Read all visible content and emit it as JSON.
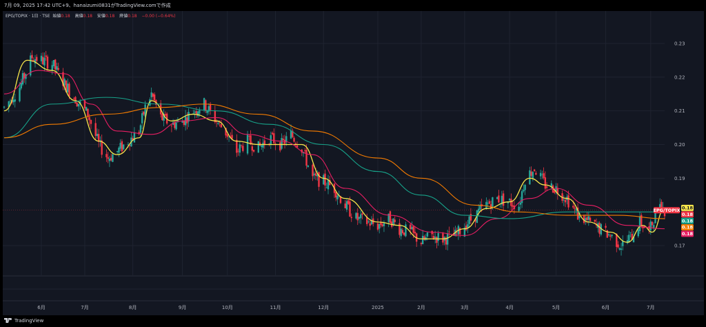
{
  "header": {
    "text": "7月 09, 2025 17:42 UTC+9、hanaizumi0831がTradingView.comで作成"
  },
  "legend": {
    "symbol": "EPG/TOPIX · 1日 · TSE",
    "open_label": "始値",
    "open_value": "0.18",
    "high_label": "高値",
    "high_value": "0.18",
    "low_label": "安値",
    "low_value": "0.18",
    "close_label": "終値",
    "close_value": "0.18",
    "change": "−0.00 (−0.64%)"
  },
  "footer": {
    "brand": "TradingView"
  },
  "colors": {
    "background": "#131722",
    "grid": "#1f2330",
    "up": "#26a69a",
    "down": "#f23645",
    "text": "#b2b5be",
    "ma_yellow": "#f7e64b",
    "ma_pink": "#e91e63",
    "ma_teal": "#17a38a",
    "ma_orange": "#f57c00"
  },
  "chart_data": {
    "type": "candlestick",
    "title": "EPG/TOPIX · 1日 · TSE",
    "xlabel": "",
    "ylabel": "",
    "ylim": [
      0.161,
      0.239
    ],
    "y_scale": "linear",
    "yticks": [
      "0.23",
      "0.22",
      "0.21",
      "0.20",
      "0.19",
      "0.17"
    ],
    "ytick_values": [
      0.23,
      0.22,
      0.21,
      0.2,
      0.19,
      0.17
    ],
    "x_range": [
      "2024-05-10",
      "2025-07-10"
    ],
    "xticks": [
      {
        "label": "6月",
        "date": "2024-06-03"
      },
      {
        "label": "7月",
        "date": "2024-07-01"
      },
      {
        "label": "8月",
        "date": "2024-08-01"
      },
      {
        "label": "9月",
        "date": "2024-09-02"
      },
      {
        "label": "10月",
        "date": "2024-10-01"
      },
      {
        "label": "11月",
        "date": "2024-11-01"
      },
      {
        "label": "12月",
        "date": "2024-12-02"
      },
      {
        "label": "2025",
        "date": "2025-01-06"
      },
      {
        "label": "2月",
        "date": "2025-02-03"
      },
      {
        "label": "3月",
        "date": "2025-03-03"
      },
      {
        "label": "4月",
        "date": "2025-04-01"
      },
      {
        "label": "5月",
        "date": "2025-05-01"
      },
      {
        "label": "6月",
        "date": "2025-06-02"
      },
      {
        "label": "7月",
        "date": "2025-07-01"
      }
    ],
    "grid": true,
    "last_price": 0.1805,
    "price_path": [
      [
        "2024-05-10",
        0.211
      ],
      [
        "2024-05-20",
        0.217
      ],
      [
        "2024-05-28",
        0.226
      ],
      [
        "2024-06-03",
        0.225
      ],
      [
        "2024-06-10",
        0.224
      ],
      [
        "2024-06-18",
        0.218
      ],
      [
        "2024-06-26",
        0.213
      ],
      [
        "2024-07-03",
        0.209
      ],
      [
        "2024-07-10",
        0.2
      ],
      [
        "2024-07-16",
        0.196
      ],
      [
        "2024-07-22",
        0.198
      ],
      [
        "2024-07-29",
        0.201
      ],
      [
        "2024-08-05",
        0.204
      ],
      [
        "2024-08-09",
        0.211
      ],
      [
        "2024-08-13",
        0.215
      ],
      [
        "2024-08-19",
        0.208
      ],
      [
        "2024-08-26",
        0.206
      ],
      [
        "2024-09-02",
        0.207
      ],
      [
        "2024-09-09",
        0.21
      ],
      [
        "2024-09-16",
        0.212
      ],
      [
        "2024-09-24",
        0.207
      ],
      [
        "2024-10-01",
        0.203
      ],
      [
        "2024-10-07",
        0.198
      ],
      [
        "2024-10-14",
        0.201
      ],
      [
        "2024-10-21",
        0.199
      ],
      [
        "2024-10-28",
        0.202
      ],
      [
        "2024-11-05",
        0.2
      ],
      [
        "2024-11-11",
        0.203
      ],
      [
        "2024-11-18",
        0.199
      ],
      [
        "2024-11-25",
        0.19
      ],
      [
        "2024-12-02",
        0.189
      ],
      [
        "2024-12-09",
        0.187
      ],
      [
        "2024-12-16",
        0.182
      ],
      [
        "2024-12-23",
        0.178
      ],
      [
        "2025-01-06",
        0.176
      ],
      [
        "2025-01-14",
        0.178
      ],
      [
        "2025-01-20",
        0.175
      ],
      [
        "2025-01-27",
        0.174
      ],
      [
        "2025-02-03",
        0.171
      ],
      [
        "2025-02-10",
        0.173
      ],
      [
        "2025-02-17",
        0.172
      ],
      [
        "2025-02-25",
        0.173
      ],
      [
        "2025-03-03",
        0.176
      ],
      [
        "2025-03-10",
        0.179
      ],
      [
        "2025-03-17",
        0.182
      ],
      [
        "2025-03-24",
        0.184
      ],
      [
        "2025-03-31",
        0.183
      ],
      [
        "2025-04-07",
        0.182
      ],
      [
        "2025-04-11",
        0.19
      ],
      [
        "2025-04-17",
        0.193
      ],
      [
        "2025-04-24",
        0.188
      ],
      [
        "2025-05-01",
        0.187
      ],
      [
        "2025-05-08",
        0.184
      ],
      [
        "2025-05-15",
        0.179
      ],
      [
        "2025-05-22",
        0.177
      ],
      [
        "2025-05-29",
        0.175
      ],
      [
        "2025-06-05",
        0.173
      ],
      [
        "2025-06-12",
        0.17
      ],
      [
        "2025-06-19",
        0.173
      ],
      [
        "2025-06-24",
        0.177
      ],
      [
        "2025-06-30",
        0.174
      ],
      [
        "2025-07-03",
        0.178
      ],
      [
        "2025-07-07",
        0.183
      ],
      [
        "2025-07-10",
        0.1805
      ]
    ],
    "series": [
      {
        "color": "#f7e64b",
        "points": [
          [
            "2024-05-10",
            0.21
          ],
          [
            "2024-05-25",
            0.225
          ],
          [
            "2024-06-10",
            0.222
          ],
          [
            "2024-06-25",
            0.213
          ],
          [
            "2024-07-10",
            0.201
          ],
          [
            "2024-07-22",
            0.197
          ],
          [
            "2024-08-05",
            0.202
          ],
          [
            "2024-08-13",
            0.213
          ],
          [
            "2024-08-26",
            0.207
          ],
          [
            "2024-09-09",
            0.209
          ],
          [
            "2024-09-24",
            0.207
          ],
          [
            "2024-10-07",
            0.201
          ],
          [
            "2024-10-21",
            0.2
          ],
          [
            "2024-11-05",
            0.2
          ],
          [
            "2024-11-18",
            0.2
          ],
          [
            "2024-12-02",
            0.19
          ],
          [
            "2024-12-16",
            0.184
          ],
          [
            "2025-01-06",
            0.177
          ],
          [
            "2025-01-20",
            0.176
          ],
          [
            "2025-02-03",
            0.172
          ],
          [
            "2025-02-17",
            0.172
          ],
          [
            "2025-03-03",
            0.175
          ],
          [
            "2025-03-17",
            0.181
          ],
          [
            "2025-04-01",
            0.183
          ],
          [
            "2025-04-14",
            0.19
          ],
          [
            "2025-04-24",
            0.188
          ],
          [
            "2025-05-08",
            0.184
          ],
          [
            "2025-05-22",
            0.177
          ],
          [
            "2025-06-05",
            0.174
          ],
          [
            "2025-06-16",
            0.171
          ],
          [
            "2025-06-26",
            0.176
          ],
          [
            "2025-07-02",
            0.174
          ],
          [
            "2025-07-10",
            0.181
          ]
        ]
      },
      {
        "color": "#e91e63",
        "points": [
          [
            "2024-05-10",
            0.215
          ],
          [
            "2024-06-01",
            0.222
          ],
          [
            "2024-06-18",
            0.221
          ],
          [
            "2024-07-05",
            0.212
          ],
          [
            "2024-07-22",
            0.204
          ],
          [
            "2024-08-13",
            0.203
          ],
          [
            "2024-09-02",
            0.207
          ],
          [
            "2024-09-24",
            0.208
          ],
          [
            "2024-10-14",
            0.203
          ],
          [
            "2024-11-05",
            0.201
          ],
          [
            "2024-11-25",
            0.197
          ],
          [
            "2024-12-16",
            0.187
          ],
          [
            "2025-01-14",
            0.179
          ],
          [
            "2025-02-10",
            0.174
          ],
          [
            "2025-03-03",
            0.173
          ],
          [
            "2025-03-24",
            0.178
          ],
          [
            "2025-04-14",
            0.184
          ],
          [
            "2025-05-01",
            0.187
          ],
          [
            "2025-05-22",
            0.182
          ],
          [
            "2025-06-16",
            0.176
          ],
          [
            "2025-07-10",
            0.175
          ]
        ]
      },
      {
        "color": "#17a38a",
        "points": [
          [
            "2024-05-10",
            0.202
          ],
          [
            "2024-06-10",
            0.212
          ],
          [
            "2024-07-15",
            0.214
          ],
          [
            "2024-08-19",
            0.212
          ],
          [
            "2024-09-24",
            0.21
          ],
          [
            "2024-10-28",
            0.206
          ],
          [
            "2024-12-02",
            0.2
          ],
          [
            "2025-01-06",
            0.192
          ],
          [
            "2025-02-03",
            0.185
          ],
          [
            "2025-03-03",
            0.179
          ],
          [
            "2025-04-01",
            0.178
          ],
          [
            "2025-05-08",
            0.18
          ],
          [
            "2025-06-05",
            0.18
          ],
          [
            "2025-07-10",
            0.18
          ]
        ]
      },
      {
        "color": "#f57c00",
        "points": [
          [
            "2024-05-10",
            0.202
          ],
          [
            "2024-06-10",
            0.206
          ],
          [
            "2024-07-15",
            0.209
          ],
          [
            "2024-08-19",
            0.211
          ],
          [
            "2024-09-16",
            0.212
          ],
          [
            "2024-10-21",
            0.209
          ],
          [
            "2024-11-25",
            0.204
          ],
          [
            "2025-01-06",
            0.196
          ],
          [
            "2025-02-03",
            0.19
          ],
          [
            "2025-03-10",
            0.182
          ],
          [
            "2025-04-07",
            0.18
          ],
          [
            "2025-05-08",
            0.179
          ],
          [
            "2025-06-10",
            0.179
          ],
          [
            "2025-07-10",
            0.178
          ]
        ]
      }
    ],
    "price_labels": [
      {
        "text": "0.18",
        "color": "#f7e64b",
        "value": 0.1812
      },
      {
        "text": "EPG/TOPIX",
        "color": "#f23645",
        "value": 0.1805
      },
      {
        "text": "0.18",
        "color": "#f23645",
        "value": 0.1805
      },
      {
        "text": "0.18",
        "color": "#17a38a",
        "value": 0.1792
      },
      {
        "text": "0.18",
        "color": "#f57c00",
        "value": 0.1785
      },
      {
        "text": "0.18",
        "color": "#e91e63",
        "value": 0.1752
      }
    ]
  }
}
